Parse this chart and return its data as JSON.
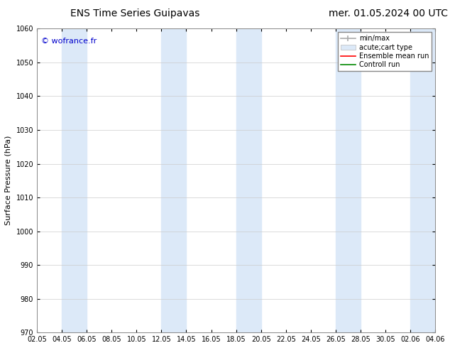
{
  "title_left": "ENS Time Series Guipavas",
  "title_right": "mer. 01.05.2024 00 UTC",
  "ylabel": "Surface Pressure (hPa)",
  "ylim": [
    970,
    1060
  ],
  "yticks": [
    970,
    980,
    990,
    1000,
    1010,
    1020,
    1030,
    1040,
    1050,
    1060
  ],
  "xtick_labels": [
    "02.05",
    "04.05",
    "06.05",
    "08.05",
    "10.05",
    "12.05",
    "14.05",
    "16.05",
    "18.05",
    "20.05",
    "22.05",
    "24.05",
    "26.05",
    "28.05",
    "30.05",
    "02.06",
    "04.06"
  ],
  "watermark": "© wofrance.fr",
  "watermark_color": "#0000cc",
  "bg_color": "#ffffff",
  "band_color": "#dce9f8",
  "grid_color": "#cccccc",
  "legend_labels": [
    "min/max",
    "acute;cart type",
    "Ensemble mean run",
    "Controll run"
  ],
  "legend_colors": [
    "#aaaaaa",
    "#dce9f8",
    "#ff0000",
    "#008800"
  ],
  "tick_label_fontsize": 7,
  "ylabel_fontsize": 8,
  "title_fontsize": 10,
  "watermark_fontsize": 8,
  "legend_fontsize": 7
}
